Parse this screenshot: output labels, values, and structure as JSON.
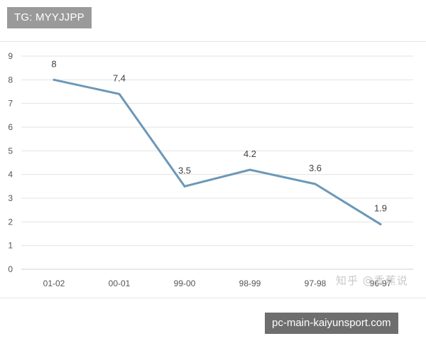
{
  "tag_badge": "TG: MYYJJPP",
  "site_badge": "pc-main-kaiyunsport.com",
  "watermark": "知乎 @香蕉说",
  "chart_data": {
    "type": "line",
    "title": "",
    "xlabel": "",
    "ylabel": "",
    "categories": [
      "01-02",
      "00-01",
      "99-00",
      "98-99",
      "97-98",
      "96-97"
    ],
    "series": [
      {
        "values": [
          8,
          7.4,
          3.5,
          4.2,
          3.6,
          1.9
        ],
        "color": "#6c98b8"
      }
    ],
    "data_labels": [
      "8",
      "7.4",
      "3.5",
      "4.2",
      "3.6",
      "1.9"
    ],
    "ylim": [
      0,
      9
    ],
    "yticks": [
      "0",
      "1",
      "2",
      "3",
      "4",
      "5",
      "6",
      "7",
      "8",
      "9"
    ],
    "grid": true,
    "legend": "none"
  }
}
